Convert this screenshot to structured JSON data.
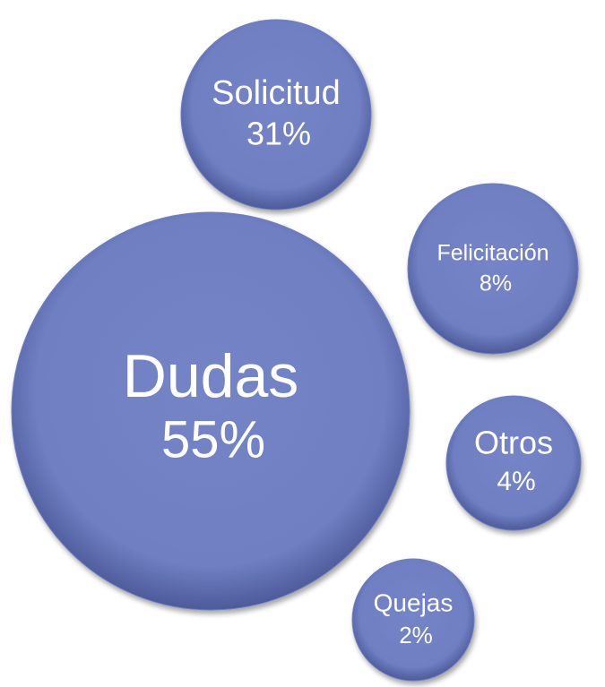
{
  "chart_data": {
    "type": "bubble",
    "categories": [
      "Dudas",
      "Solicitud",
      "Felicitación",
      "Otros",
      "Quejas"
    ],
    "values": [
      55,
      31,
      8,
      4,
      2
    ],
    "value_labels": [
      "55%",
      "31%",
      "8%",
      "4%",
      "2%"
    ],
    "color": "#6f7fc2"
  }
}
